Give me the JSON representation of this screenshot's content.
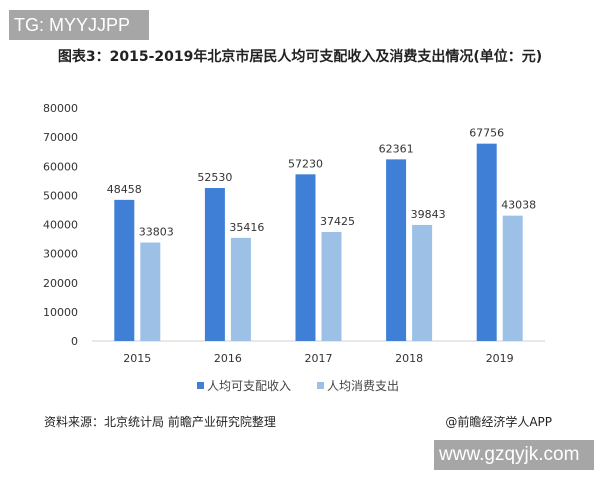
{
  "watermark_top": "TG: MYYJJPP",
  "watermark_bottom": "www.gzqyjk.com",
  "chart_data": {
    "type": "bar",
    "title": "图表3：2015-2019年北京市居民人均可支配收入及消费支出情况(单位：元)",
    "categories": [
      "2015",
      "2016",
      "2017",
      "2018",
      "2019"
    ],
    "series": [
      {
        "name": "人均可支配收入",
        "values": [
          48458,
          52530,
          57230,
          62361,
          67756
        ],
        "color": "#3f7fd6"
      },
      {
        "name": "人均消费支出",
        "values": [
          33803,
          35416,
          37425,
          39843,
          43038
        ],
        "color": "#9dc0e6"
      }
    ],
    "ylim": [
      0,
      80000
    ],
    "yticks": [
      0,
      10000,
      20000,
      30000,
      40000,
      50000,
      60000,
      70000,
      80000
    ],
    "grid": false,
    "legend": "bottom"
  },
  "footer": {
    "source": "资料来源：北京统计局 前瞻产业研究院整理",
    "credit": "@前瞻经济学人APP"
  }
}
